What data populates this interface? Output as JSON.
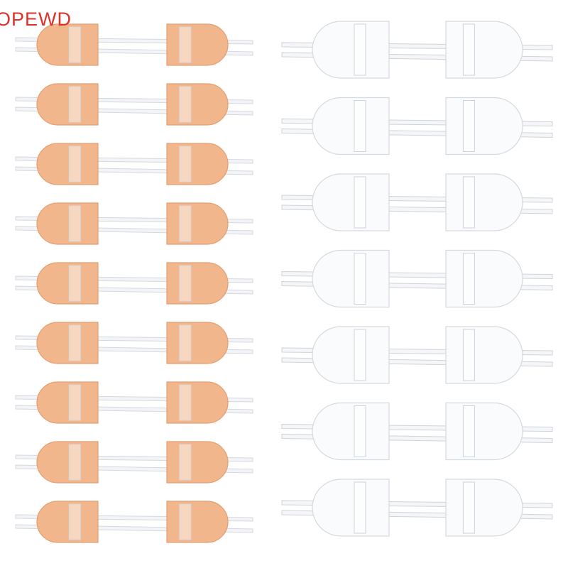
{
  "watermark": "OPEWD"
}
